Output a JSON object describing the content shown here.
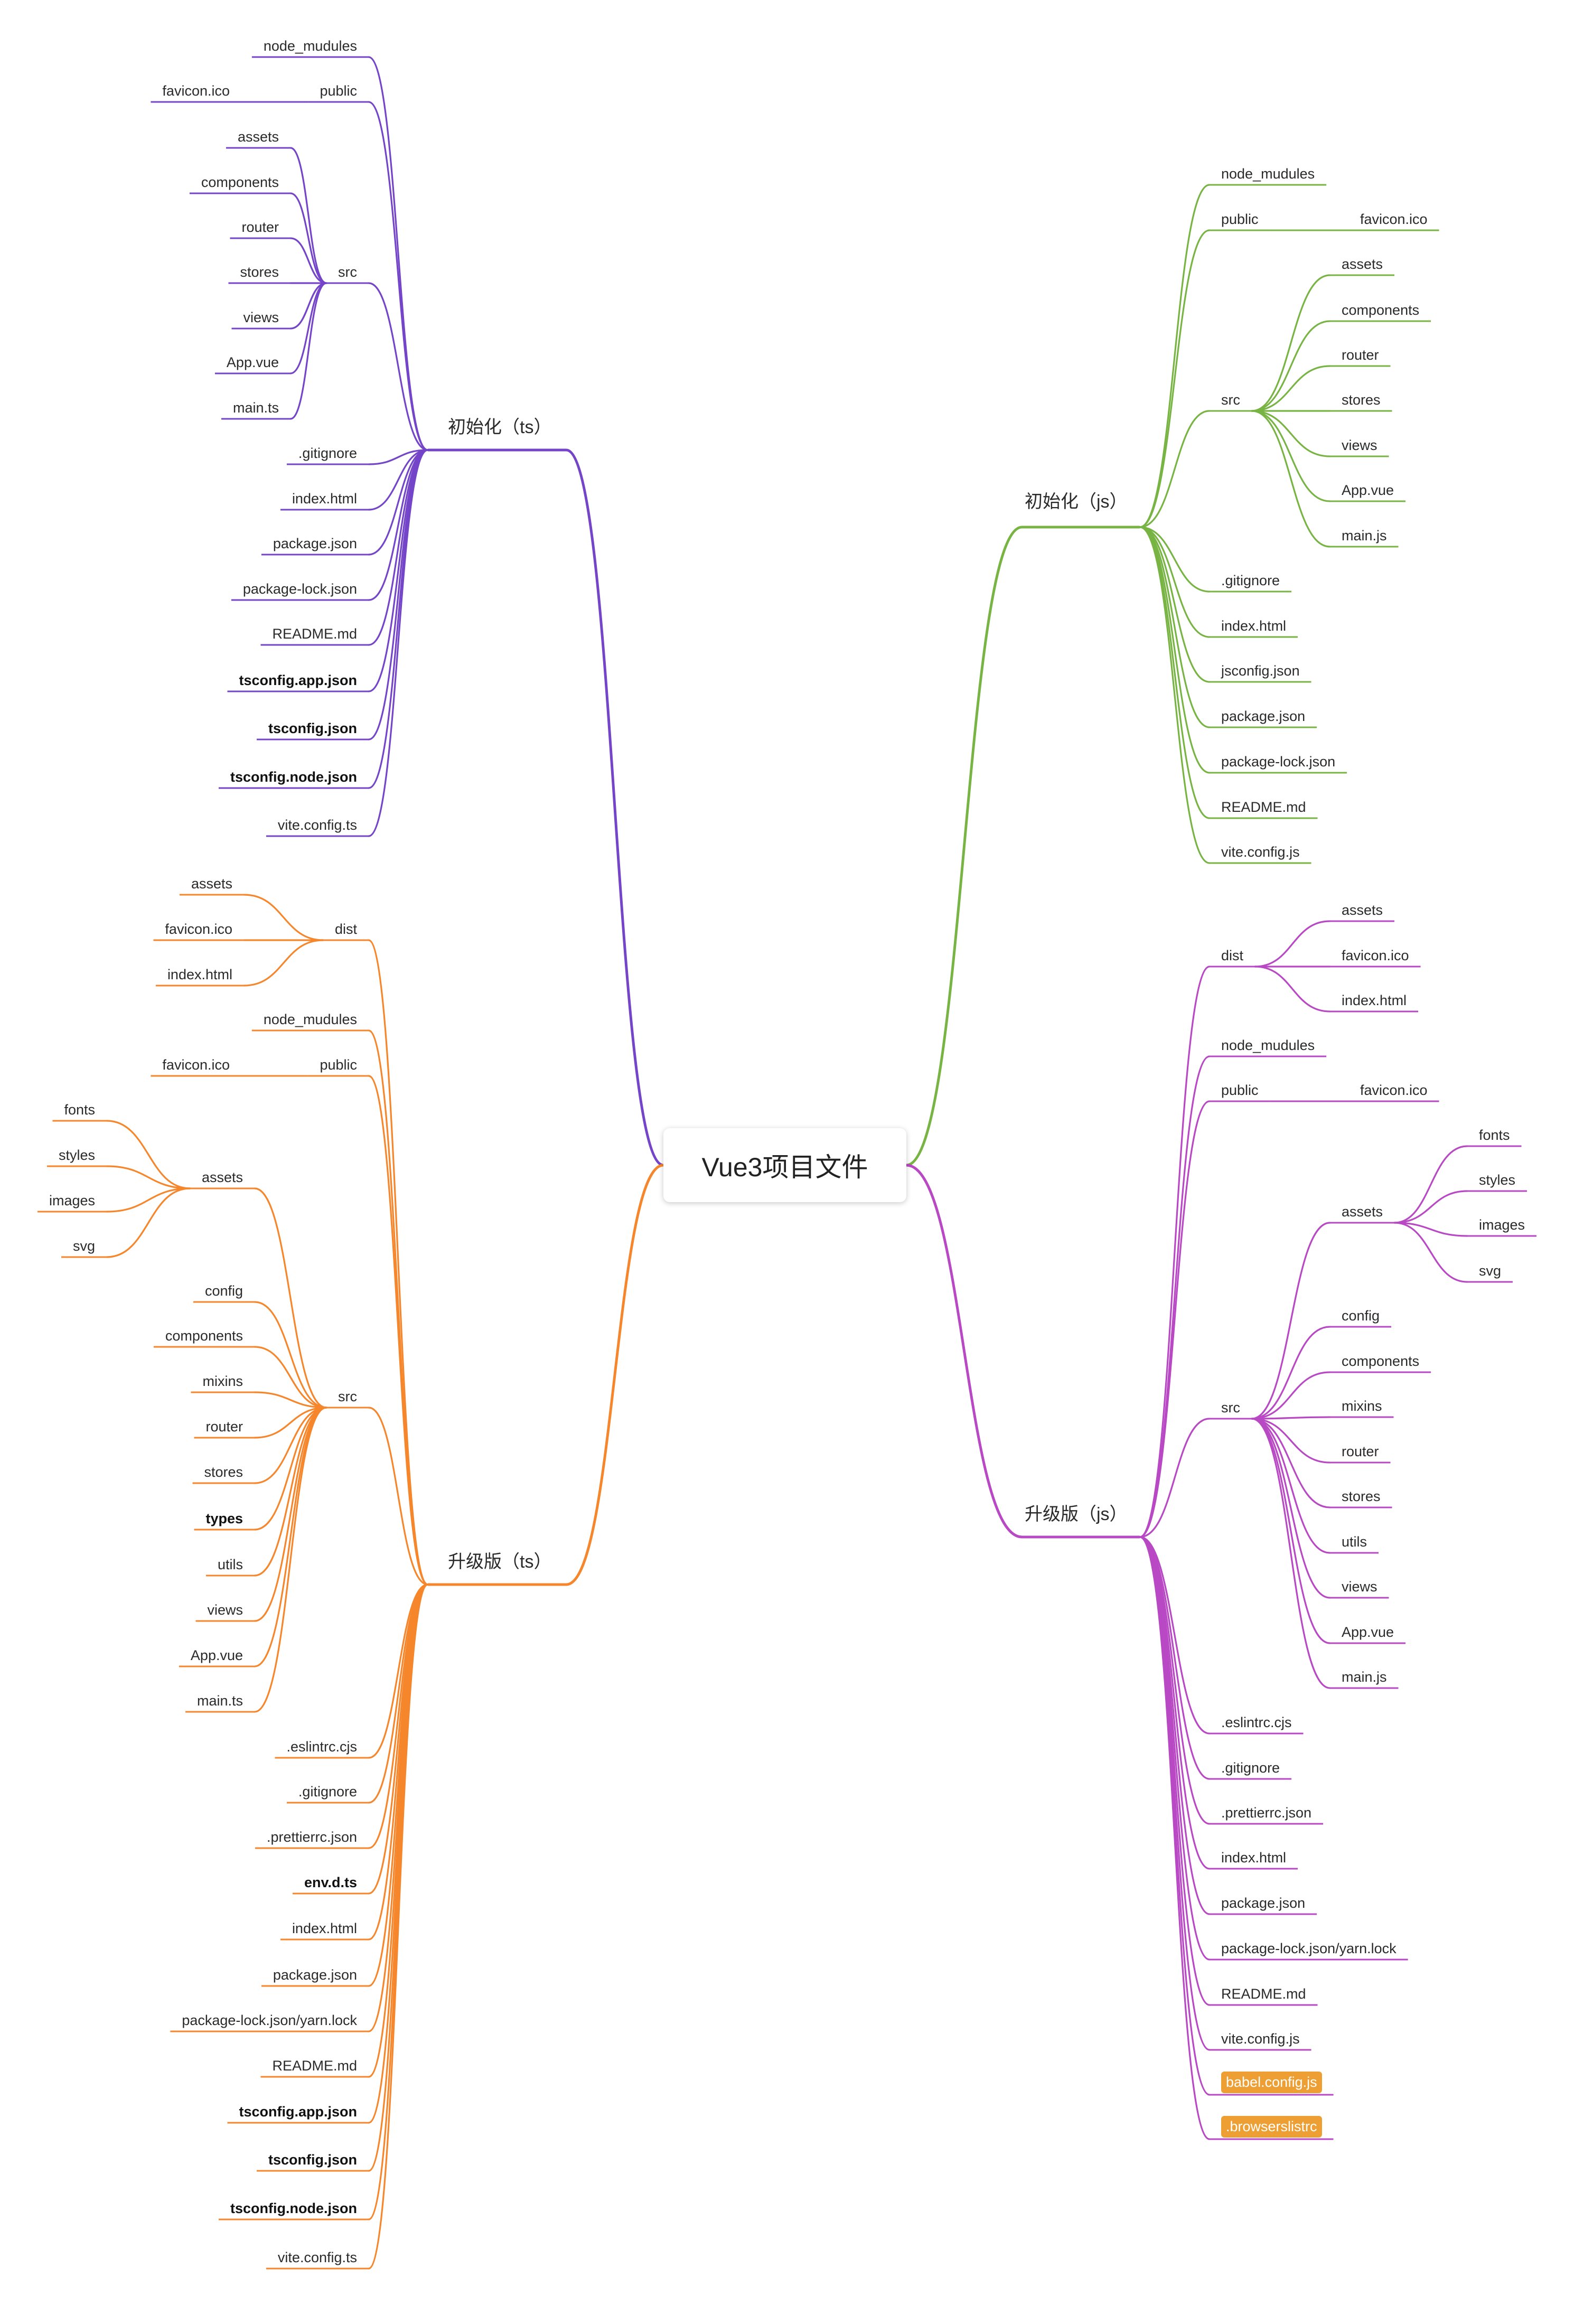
{
  "root": {
    "label": "Vue3项目文件",
    "children": [
      {
        "label": "初始化（ts）",
        "side": "left",
        "color": "#7445c8",
        "children": [
          {
            "label": "node_mudules"
          },
          {
            "label": "public",
            "children": [
              {
                "label": "favicon.ico"
              }
            ]
          },
          {
            "label": "src",
            "children": [
              {
                "label": "assets"
              },
              {
                "label": "components"
              },
              {
                "label": "router"
              },
              {
                "label": "stores"
              },
              {
                "label": "views"
              },
              {
                "label": "App.vue"
              },
              {
                "label": "main.ts"
              }
            ]
          },
          {
            "label": ".gitignore"
          },
          {
            "label": "index.html"
          },
          {
            "label": "package.json"
          },
          {
            "label": "package-lock.json"
          },
          {
            "label": "README.md"
          },
          {
            "label": "tsconfig.app.json",
            "bold": true
          },
          {
            "label": "tsconfig.json",
            "bold": true
          },
          {
            "label": "tsconfig.node.json",
            "bold": true
          },
          {
            "label": "vite.config.ts"
          }
        ]
      },
      {
        "label": "初始化（js）",
        "side": "right",
        "color": "#78b443",
        "children": [
          {
            "label": "node_mudules"
          },
          {
            "label": "public",
            "children": [
              {
                "label": "favicon.ico"
              }
            ]
          },
          {
            "label": "src",
            "children": [
              {
                "label": "assets"
              },
              {
                "label": "components"
              },
              {
                "label": "router"
              },
              {
                "label": "stores"
              },
              {
                "label": "views"
              },
              {
                "label": "App.vue"
              },
              {
                "label": "main.js"
              }
            ]
          },
          {
            "label": ".gitignore"
          },
          {
            "label": "index.html"
          },
          {
            "label": "jsconfig.json"
          },
          {
            "label": "package.json"
          },
          {
            "label": "package-lock.json"
          },
          {
            "label": "README.md"
          },
          {
            "label": "vite.config.js"
          }
        ]
      },
      {
        "label": "升级版（ts）",
        "side": "left",
        "color": "#f6862b",
        "children": [
          {
            "label": "dist",
            "children": [
              {
                "label": "assets"
              },
              {
                "label": "favicon.ico"
              },
              {
                "label": "index.html"
              }
            ]
          },
          {
            "label": "node_mudules"
          },
          {
            "label": "public",
            "children": [
              {
                "label": "favicon.ico"
              }
            ]
          },
          {
            "label": "src",
            "children": [
              {
                "label": "assets",
                "children": [
                  {
                    "label": "fonts"
                  },
                  {
                    "label": "styles"
                  },
                  {
                    "label": "images"
                  },
                  {
                    "label": "svg"
                  }
                ]
              },
              {
                "label": "config"
              },
              {
                "label": "components"
              },
              {
                "label": "mixins"
              },
              {
                "label": "router"
              },
              {
                "label": "stores"
              },
              {
                "label": "types",
                "bold": true
              },
              {
                "label": "utils"
              },
              {
                "label": "views"
              },
              {
                "label": "App.vue"
              },
              {
                "label": "main.ts"
              }
            ]
          },
          {
            "label": ".eslintrc.cjs"
          },
          {
            "label": ".gitignore"
          },
          {
            "label": ".prettierrc.json"
          },
          {
            "label": "env.d.ts",
            "bold": true
          },
          {
            "label": "index.html"
          },
          {
            "label": "package.json"
          },
          {
            "label": "package-lock.json/yarn.lock"
          },
          {
            "label": "README.md"
          },
          {
            "label": "tsconfig.app.json",
            "bold": true
          },
          {
            "label": "tsconfig.json",
            "bold": true
          },
          {
            "label": "tsconfig.node.json",
            "bold": true
          },
          {
            "label": "vite.config.ts"
          }
        ]
      },
      {
        "label": "升级版（js）",
        "side": "right",
        "color": "#b848c4",
        "children": [
          {
            "label": "dist",
            "children": [
              {
                "label": "assets"
              },
              {
                "label": "favicon.ico"
              },
              {
                "label": "index.html"
              }
            ]
          },
          {
            "label": "node_mudules"
          },
          {
            "label": "public",
            "children": [
              {
                "label": "favicon.ico"
              }
            ]
          },
          {
            "label": "src",
            "children": [
              {
                "label": "assets",
                "children": [
                  {
                    "label": "fonts"
                  },
                  {
                    "label": "styles"
                  },
                  {
                    "label": "images"
                  },
                  {
                    "label": "svg"
                  }
                ]
              },
              {
                "label": "config"
              },
              {
                "label": "components"
              },
              {
                "label": "mixins"
              },
              {
                "label": "router"
              },
              {
                "label": "stores"
              },
              {
                "label": "utils"
              },
              {
                "label": "views"
              },
              {
                "label": "App.vue"
              },
              {
                "label": "main.js"
              }
            ]
          },
          {
            "label": ".eslintrc.cjs"
          },
          {
            "label": ".gitignore"
          },
          {
            "label": ".prettierrc.json"
          },
          {
            "label": "index.html"
          },
          {
            "label": "package.json"
          },
          {
            "label": "package-lock.json/yarn.lock"
          },
          {
            "label": "README.md"
          },
          {
            "label": "vite.config.js"
          },
          {
            "label": "babel.config.js",
            "highlight": true
          },
          {
            "label": ".browserslistrc",
            "highlight": true
          }
        ]
      }
    ]
  }
}
